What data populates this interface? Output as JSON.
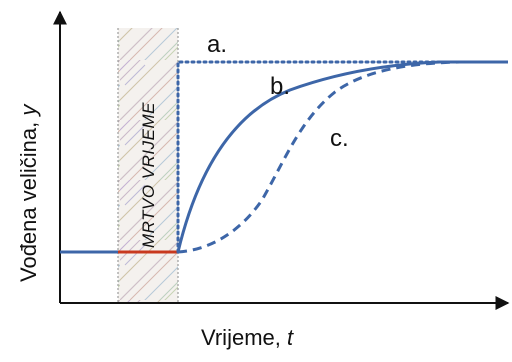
{
  "figure": {
    "y_axis_label": "Vođena veličina, ",
    "y_axis_symbol": "y",
    "x_axis_label": "Vrijeme, ",
    "x_axis_symbol": "t",
    "dead_time_label": "MRTVO VRIJEME",
    "curve_a_label": "a.",
    "curve_b_label": "b.",
    "curve_c_label": "c."
  },
  "colors": {
    "axis": "#111111",
    "curve": "#3d66a8",
    "initial_segment": "#3d66a8",
    "dead_time_segment": "#c8391f",
    "hatch_region_border": "#8a8a8a"
  }
}
